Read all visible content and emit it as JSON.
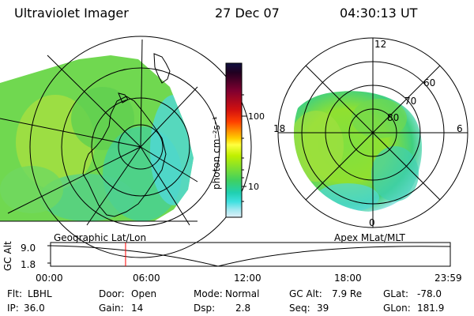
{
  "header": {
    "instrument": "Ultraviolet Imager",
    "date": "27 Dec 07",
    "time": "04:30:13 UT"
  },
  "left_map": {
    "label": "Geographic Lat/Lon",
    "icon": "auroral-oval-geographic-map"
  },
  "right_map": {
    "label": "Apex MLat/MLT",
    "icon": "auroral-oval-polar-plot",
    "mlt_labels": [
      "12",
      "18",
      "6",
      "0"
    ],
    "lat_labels": [
      "60",
      "70",
      "80"
    ]
  },
  "colorbar": {
    "unit_label": "photon cm⁻²s⁻¹",
    "ticks": [
      "100",
      "10"
    ],
    "colors": [
      "#101040",
      "#200020",
      "#800030",
      "#d01010",
      "#ff4000",
      "#ff9000",
      "#ffd000",
      "#ffff40",
      "#c0f000",
      "#80e030",
      "#40d060",
      "#20d0b0",
      "#40e0e0",
      "#a0e8f0",
      "#e0f0f8"
    ]
  },
  "timeline": {
    "ylabel": "GC Alt",
    "ytick_top": "9.0",
    "ytick_bottom": "1.8",
    "xticks": [
      "00:00",
      "06:00",
      "12:00",
      "18:00",
      "23:59"
    ],
    "marker_color": "#ff0000",
    "marker_time": "04:30"
  },
  "info": {
    "flt_label": "Flt:",
    "flt_value": "LBHL",
    "door_label": "Door:",
    "door_value": "Open",
    "mode_label": "Mode:",
    "mode_value": "Normal",
    "gcalt_label": "GC Alt:",
    "gcalt_value": "7.9 Re",
    "glat_label": "GLat:",
    "glat_value": "-78.0",
    "ip_label": "IP:",
    "ip_value": "36.0",
    "gain_label": "Gain:",
    "gain_value": "14",
    "dsp_label": "Dsp:",
    "dsp_value": "2.8",
    "seq_label": "Seq:",
    "seq_value": "39",
    "glon_label": "GLon:",
    "glon_value": "181.9"
  }
}
